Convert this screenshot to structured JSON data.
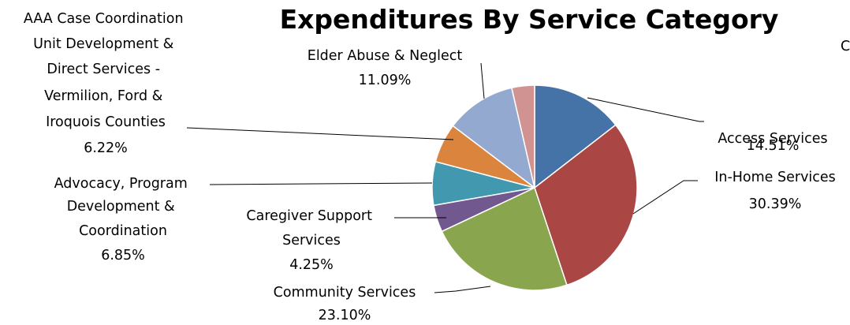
{
  "chart_data": {
    "type": "pie",
    "title": "Expenditures By Service Category",
    "slices": [
      {
        "name": "Access Services",
        "value": 14.51,
        "label": "14.51%",
        "color": "#4572A7"
      },
      {
        "name": "In-Home Services",
        "value": 30.39,
        "label": "30.39%",
        "color": "#AA4643"
      },
      {
        "name": "Community Services",
        "value": 23.1,
        "label": "23.10%",
        "color": "#89A54E"
      },
      {
        "name": "Caregiver Support Services",
        "value": 4.25,
        "label": "4.25%",
        "color": "#71588F"
      },
      {
        "name": "Advocacy, Program Development & Coordination",
        "value": 6.85,
        "label": "6.85%",
        "color": "#4198AF"
      },
      {
        "name": "AAA Case Coordination Unit Development & Direct Services - Vermilion, Ford & Iroquois Counties",
        "value": 6.22,
        "label": "6.22%",
        "color": "#DB843D"
      },
      {
        "name": "Elder Abuse & Neglect",
        "value": 11.09,
        "label": "11.09%",
        "color": "#93A9CF"
      },
      {
        "name": "",
        "value": 3.59,
        "label": "",
        "color": "#D19392"
      }
    ],
    "clipped_text": "C"
  }
}
